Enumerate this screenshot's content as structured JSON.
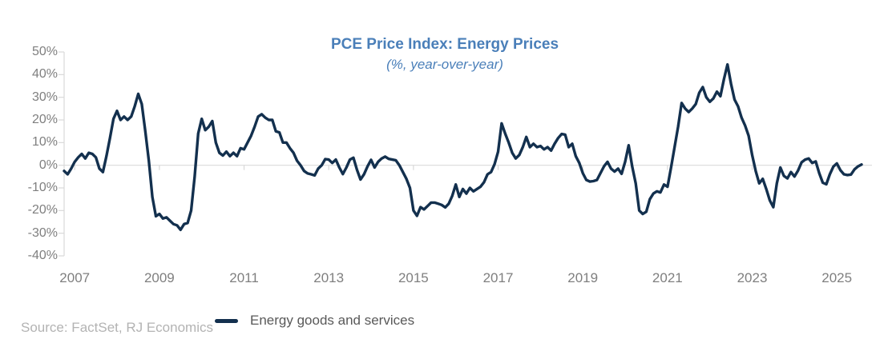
{
  "title": "PCE Price Index: Energy Prices",
  "subtitle": "(%, year-over-year)",
  "source": "Source: FactSet, RJ Economics",
  "legend": {
    "label": "Energy goods and services"
  },
  "colors": {
    "line": "#13304e",
    "title": "#4a7fb9",
    "axis_text": "#7f7f7f",
    "legend_text": "#595959",
    "source_text": "#b3b3b3",
    "grid": "#d9d9d9",
    "background": "#ffffff"
  },
  "y_axis": {
    "tick_labels": [
      "50%",
      "40%",
      "30%",
      "20%",
      "10%",
      "0%",
      "-10%",
      "-20%",
      "-30%",
      "-40%"
    ],
    "tick_values": [
      50,
      40,
      30,
      20,
      10,
      0,
      -10,
      -20,
      -30,
      -40
    ]
  },
  "x_axis": {
    "year_labels": [
      "2007",
      "2009",
      "2011",
      "2013",
      "2015",
      "2017",
      "2019",
      "2021",
      "2023",
      "2025"
    ]
  },
  "chart_data": {
    "type": "line",
    "title": "PCE Price Index: Energy Prices",
    "subtitle": "(%, year-over-year)",
    "ylabel": "% year-over-year",
    "ylim": [
      -40,
      50
    ],
    "grid": "zero-line-only",
    "legend_position": "bottom",
    "x_tick_years": [
      2007,
      2009,
      2011,
      2013,
      2015,
      2017,
      2019,
      2021,
      2023,
      2025
    ],
    "frequency": "monthly",
    "x_start": "2006-10",
    "x_end": "2025-08",
    "series": [
      {
        "name": "Energy goods and services",
        "values": [
          -2.5,
          -4.0,
          -1.5,
          1.5,
          3.5,
          5.0,
          3.0,
          5.5,
          5.0,
          3.5,
          -1.5,
          -3.0,
          4.0,
          12.0,
          20.5,
          24.0,
          20.0,
          21.5,
          20.0,
          21.5,
          26.0,
          31.5,
          27.0,
          15.0,
          2.0,
          -14.0,
          -22.5,
          -21.5,
          -23.5,
          -23.0,
          -24.5,
          -26.0,
          -26.5,
          -28.5,
          -26.0,
          -25.5,
          -20.0,
          -5.0,
          14.0,
          20.5,
          15.5,
          17.0,
          19.5,
          10.0,
          5.5,
          4.3,
          6.0,
          4.0,
          5.5,
          4.0,
          7.5,
          7.0,
          10.0,
          13.0,
          17.0,
          21.5,
          22.5,
          21.0,
          20.0,
          20.0,
          15.0,
          14.5,
          10.0,
          10.0,
          7.5,
          5.5,
          2.0,
          0.0,
          -2.5,
          -3.6,
          -4.0,
          -4.5,
          -1.5,
          0.0,
          2.7,
          2.5,
          1.0,
          2.5,
          -1.0,
          -3.9,
          -1.0,
          2.5,
          3.3,
          -2.0,
          -6.3,
          -4.0,
          -0.5,
          2.4,
          -1.0,
          1.5,
          3.0,
          3.8,
          2.8,
          2.5,
          2.2,
          0.0,
          -3.0,
          -6.0,
          -10.0,
          -20.0,
          -22.3,
          -18.5,
          -19.5,
          -18.0,
          -16.5,
          -16.5,
          -17.0,
          -17.5,
          -18.6,
          -17.0,
          -13.5,
          -8.5,
          -14.0,
          -10.5,
          -12.5,
          -10.0,
          -11.5,
          -10.5,
          -9.5,
          -7.5,
          -4.0,
          -3.0,
          0.5,
          6.0,
          18.5,
          14.0,
          10.0,
          5.5,
          3.0,
          4.5,
          8.0,
          12.5,
          8.0,
          9.5,
          8.0,
          8.5,
          7.0,
          8.0,
          6.5,
          9.5,
          12.0,
          13.8,
          13.5,
          8.0,
          9.5,
          4.0,
          1.0,
          -3.5,
          -6.5,
          -7.2,
          -7.0,
          -6.5,
          -3.5,
          -0.5,
          1.5,
          -1.5,
          -2.8,
          -1.5,
          -3.8,
          1.5,
          8.8,
          -0.5,
          -8.0,
          -20.0,
          -21.5,
          -20.5,
          -15.0,
          -12.5,
          -11.5,
          -12.0,
          -8.5,
          -9.5,
          -1.0,
          8.0,
          17.0,
          27.5,
          25.0,
          23.5,
          25.0,
          27.0,
          32.0,
          34.5,
          30.0,
          28.0,
          29.5,
          32.5,
          30.5,
          38.0,
          44.5,
          36.0,
          29.0,
          26.0,
          21.0,
          17.5,
          13.0,
          4.5,
          -2.5,
          -8.0,
          -6.0,
          -10.5,
          -15.5,
          -18.5,
          -8.0,
          -1.0,
          -4.7,
          -5.8,
          -3.0,
          -5.0,
          -2.3,
          1.3,
          2.5,
          3.0,
          1.0,
          1.7,
          -3.5,
          -7.7,
          -8.4,
          -4.0,
          -0.6,
          0.8,
          -2.2,
          -4.0,
          -4.3,
          -4.1,
          -1.8,
          -0.5,
          0.3
        ]
      }
    ]
  }
}
